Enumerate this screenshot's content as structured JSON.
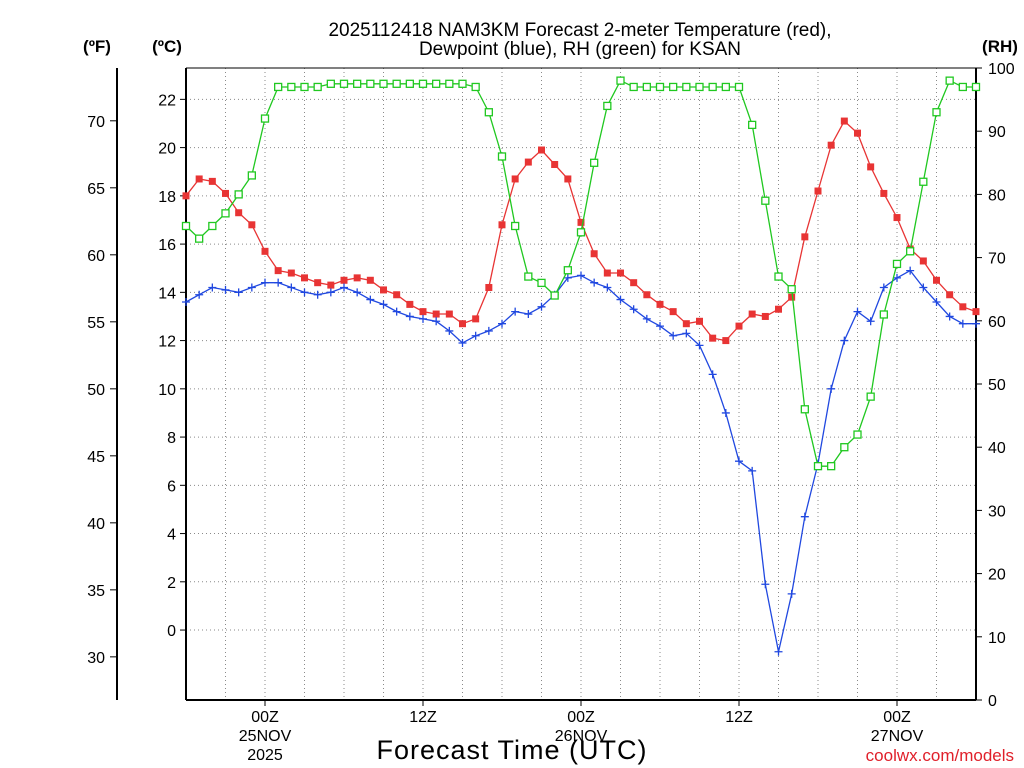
{
  "chart_data": {
    "type": "line",
    "title_line1": "2025112418 NAM3KM Forecast 2-meter Temperature (red),",
    "title_line2": "Dewpoint (blue), RH (green) for KSAN",
    "xlabel": "Forecast Time (UTC)",
    "credit": "coolwx.com/models",
    "units": {
      "fahrenheit": "(ºF)",
      "celsius": "(ºC)",
      "rh": "(RH)"
    },
    "celsius_axis": {
      "ylim": [
        -2.9,
        23.3
      ],
      "ticks": [
        0,
        2,
        4,
        6,
        8,
        10,
        12,
        14,
        16,
        18,
        20,
        22
      ],
      "tick_labels": [
        "0",
        "2",
        "4",
        "6",
        "8",
        "10",
        "12",
        "14",
        "16",
        "18",
        "20",
        "22"
      ]
    },
    "fahrenheit_axis": {
      "ticks": [
        30,
        35,
        40,
        45,
        50,
        55,
        60,
        65,
        70
      ],
      "tick_labels": [
        "30",
        "35",
        "40",
        "45",
        "50",
        "55",
        "60",
        "65",
        "70"
      ]
    },
    "rh_axis": {
      "ylim": [
        0,
        100
      ],
      "ticks": [
        0,
        10,
        20,
        30,
        40,
        50,
        60,
        70,
        80,
        90,
        100
      ],
      "tick_labels": [
        "0",
        "10",
        "20",
        "30",
        "40",
        "50",
        "60",
        "70",
        "80",
        "90",
        "100"
      ]
    },
    "x_axis": {
      "unit": "forecast hour",
      "xlim": [
        0,
        60
      ],
      "ticks": [
        {
          "hour": 6,
          "label1": "00Z",
          "label2": "25NOV",
          "label3": "2025"
        },
        {
          "hour": 18,
          "label1": "12Z",
          "label2": "",
          "label3": ""
        },
        {
          "hour": 30,
          "label1": "00Z",
          "label2": "26NOV",
          "label3": ""
        },
        {
          "hour": 42,
          "label1": "12Z",
          "label2": "",
          "label3": ""
        },
        {
          "hour": 54,
          "label1": "00Z",
          "label2": "27NOV",
          "label3": ""
        }
      ]
    },
    "x": [
      0,
      1,
      2,
      3,
      4,
      5,
      6,
      7,
      8,
      9,
      10,
      11,
      12,
      13,
      14,
      15,
      16,
      17,
      18,
      19,
      20,
      21,
      22,
      23,
      24,
      25,
      26,
      27,
      28,
      29,
      30,
      31,
      32,
      33,
      34,
      35,
      36,
      37,
      38,
      39,
      40,
      41,
      42,
      43,
      44,
      45,
      46,
      47,
      48,
      49,
      50,
      51,
      52,
      53,
      54,
      55,
      56,
      57,
      58,
      59,
      60
    ],
    "series": [
      {
        "name": "Temperature",
        "axis": "celsius",
        "color": "#e83434",
        "marker": "filled-square",
        "values": [
          18.0,
          18.7,
          18.6,
          18.1,
          17.3,
          16.8,
          15.7,
          14.9,
          14.8,
          14.6,
          14.4,
          14.3,
          14.5,
          14.6,
          14.5,
          14.1,
          13.9,
          13.5,
          13.2,
          13.1,
          13.1,
          12.7,
          12.9,
          14.2,
          16.8,
          18.7,
          19.4,
          19.9,
          19.3,
          18.7,
          16.9,
          15.6,
          14.8,
          14.8,
          14.4,
          13.9,
          13.5,
          13.2,
          12.7,
          12.8,
          12.1,
          12.0,
          12.6,
          13.1,
          13.0,
          13.3,
          13.8,
          16.3,
          18.2,
          20.1,
          21.1,
          20.6,
          19.2,
          18.1,
          17.1,
          15.8,
          15.3,
          14.5,
          13.9,
          13.4,
          13.2
        ]
      },
      {
        "name": "Dewpoint",
        "axis": "celsius",
        "color": "#2048e0",
        "marker": "plus",
        "values": [
          13.6,
          13.9,
          14.2,
          14.1,
          14.0,
          14.2,
          14.4,
          14.4,
          14.2,
          14.0,
          13.9,
          14.0,
          14.2,
          14.0,
          13.7,
          13.5,
          13.2,
          13.0,
          12.9,
          12.8,
          12.4,
          11.9,
          12.2,
          12.4,
          12.7,
          13.2,
          13.1,
          13.4,
          13.9,
          14.6,
          14.7,
          14.4,
          14.2,
          13.7,
          13.3,
          12.9,
          12.6,
          12.2,
          12.3,
          11.8,
          10.6,
          9.0,
          7.0,
          6.6,
          1.9,
          -0.9,
          1.5,
          4.7,
          6.9,
          10.0,
          12.0,
          13.2,
          12.8,
          14.2,
          14.6,
          14.9,
          14.2,
          13.6,
          13.0,
          12.7,
          12.7
        ]
      },
      {
        "name": "RH",
        "axis": "rh",
        "color": "#20c820",
        "marker": "open-square",
        "values": [
          75,
          73,
          75,
          77,
          80,
          83,
          92,
          97,
          97,
          97,
          97,
          97.5,
          97.5,
          97.5,
          97.5,
          97.5,
          97.5,
          97.5,
          97.5,
          97.5,
          97.5,
          97.5,
          97,
          93,
          86,
          75,
          67,
          66,
          64,
          68,
          74,
          85,
          94,
          98,
          97,
          97,
          97,
          97,
          97,
          97,
          97,
          97,
          97,
          91,
          79,
          67,
          65,
          46,
          37,
          37,
          40,
          42,
          48,
          61,
          69,
          71,
          82,
          93,
          98,
          97,
          97
        ]
      }
    ]
  }
}
